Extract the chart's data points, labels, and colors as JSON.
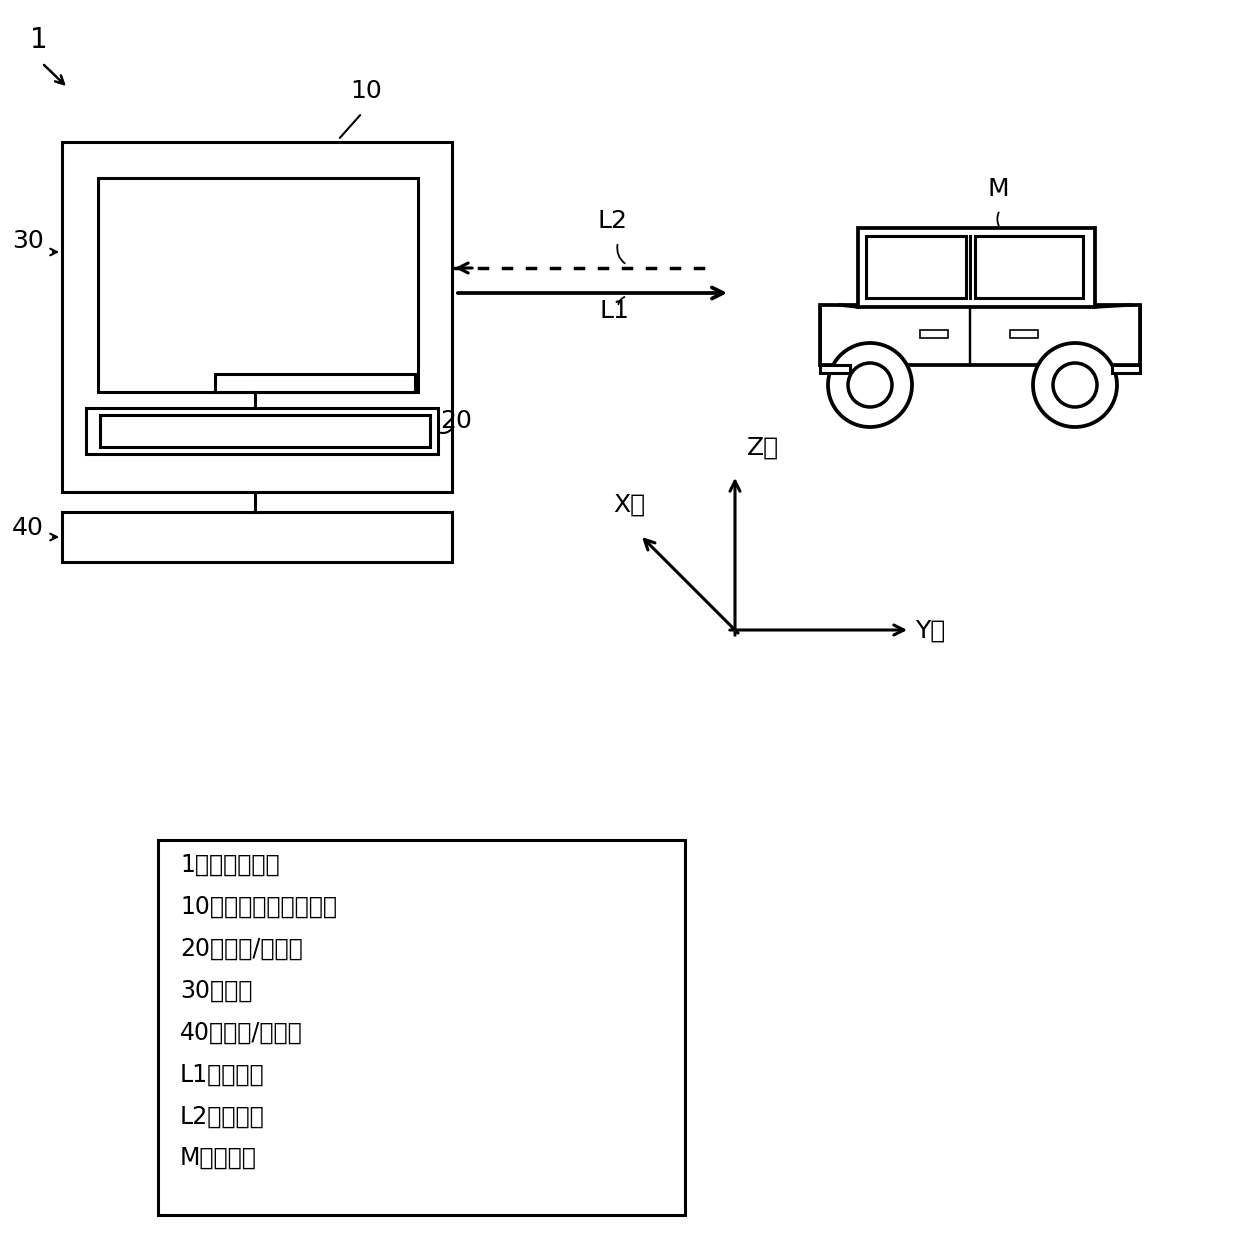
{
  "bg_color": "#ffffff",
  "line_color": "#000000",
  "label_1": "1",
  "label_10": "10",
  "label_20": "20",
  "label_30": "30",
  "label_40": "40",
  "label_L1": "L1",
  "label_L2": "L2",
  "label_M": "M",
  "label_Z": "Z轴",
  "label_Y": "Y轴",
  "label_X": "X轴",
  "legend_lines": [
    "1：光雷达装置",
    "10：飞行时间测量装置",
    "20：控制/电源部",
    "30：笱体",
    "40：驱动/接口部",
    "L1：脉冲光",
    "L2：反射光",
    "M：对象物"
  ]
}
